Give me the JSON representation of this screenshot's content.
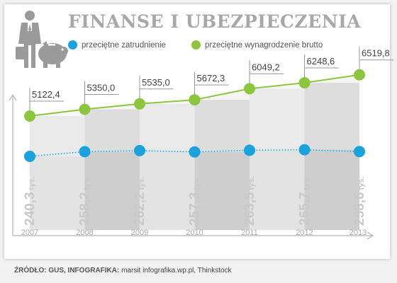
{
  "title": "FINANSE I UBEZPIECZENIA",
  "source": {
    "label": "ŹRÓDŁO: GUS, INFOGRAFIKA:",
    "text": "marsit infografika.wp.pl, Thinkstock"
  },
  "colors": {
    "wage": "#8cc63f",
    "employment": "#1ba2dc",
    "band_light": "#ececec",
    "band_dark": "#d6d6d6",
    "tick_label": "#aaaaaa",
    "emp_label": "#c9c9c9"
  },
  "icons": [
    "businessman-icon",
    "piggy-bank-icon"
  ],
  "chart_data": {
    "type": "line",
    "title": "FINANSE I UBEZPIECZENIA",
    "categories": [
      "2007",
      "2008",
      "2009",
      "2010",
      "2011",
      "2012",
      "2013"
    ],
    "legend_position": "top",
    "series": [
      {
        "name": "przeciętne zatrudnienie",
        "values": [
          240.3,
          258.2,
          262.2,
          257.3,
          263.5,
          265.7,
          258.6
        ],
        "labels": [
          "240,3",
          "258,2",
          "262,2",
          "257,3",
          "263,5",
          "265,7",
          "258,6"
        ],
        "unit": "tys.",
        "line_style": "dotted"
      },
      {
        "name": "przeciętne wynagrodzenie brutto",
        "values": [
          5122.4,
          5350.0,
          5535.0,
          5672.3,
          6049.2,
          6248.6,
          6519.8
        ],
        "labels": [
          "5122,4",
          "5350,0",
          "5535,0",
          "5672,3",
          "6049,2",
          "6248,6",
          "6519,8"
        ],
        "line_style": "solid"
      }
    ]
  }
}
